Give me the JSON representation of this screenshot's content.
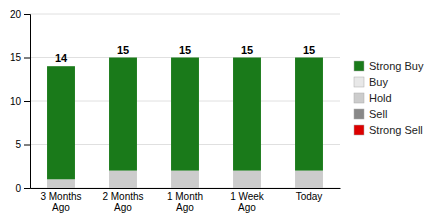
{
  "chart_data": {
    "type": "bar",
    "stacked": true,
    "grid": true,
    "categories": [
      "3 Months\nAgo",
      "2 Months\nAgo",
      "1 Month\nAgo",
      "1 Week\nAgo",
      "Today"
    ],
    "series": [
      {
        "name": "Strong Sell",
        "color": "#dd0000",
        "values": [
          0,
          0,
          0,
          0,
          0
        ]
      },
      {
        "name": "Sell",
        "color": "#888888",
        "values": [
          0,
          0,
          0,
          0,
          0
        ]
      },
      {
        "name": "Hold",
        "color": "#cccccc",
        "values": [
          1,
          2,
          2,
          2,
          2
        ]
      },
      {
        "name": "Buy",
        "color": "#e8e8e8",
        "values": [
          0,
          0,
          0,
          0,
          0
        ]
      },
      {
        "name": "Strong Buy",
        "color": "#1a7a1a",
        "values": [
          13,
          13,
          13,
          13,
          13
        ]
      }
    ],
    "totals": [
      14,
      15,
      15,
      15,
      15
    ],
    "ylim": [
      0,
      20
    ],
    "yticks": [
      0,
      5,
      10,
      15,
      20
    ]
  }
}
